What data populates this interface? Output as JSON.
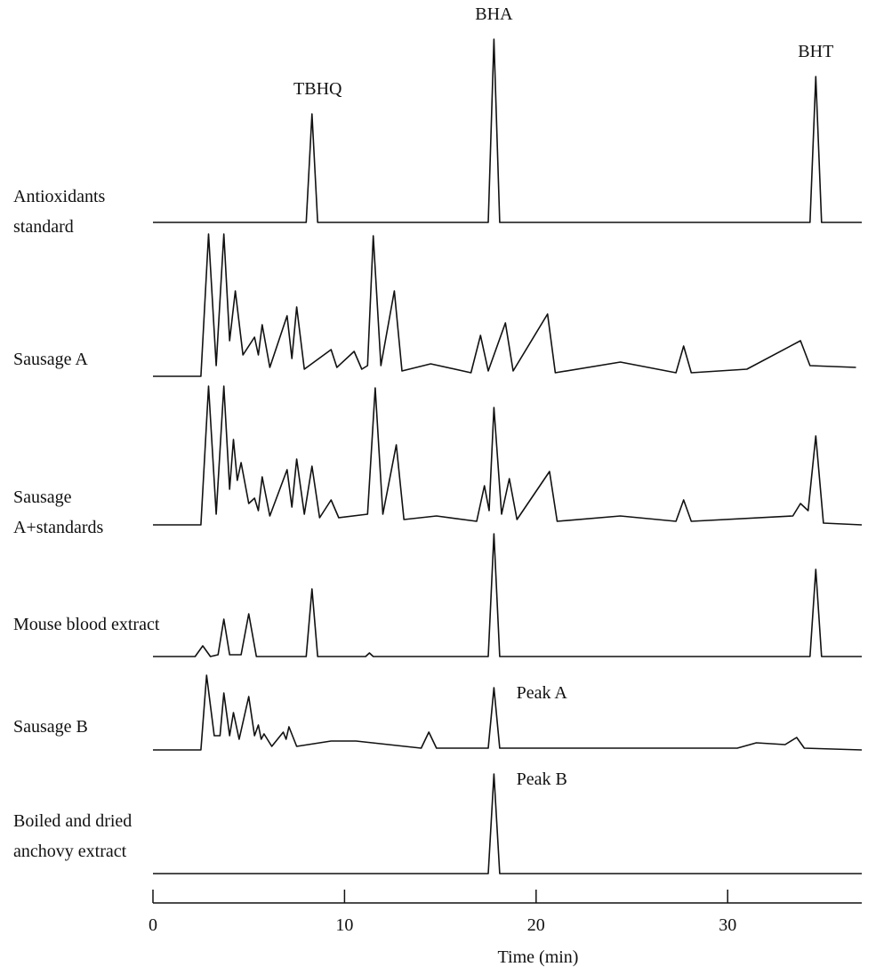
{
  "chart_data": {
    "type": "line",
    "xlabel": "Time (min)",
    "xlim": [
      0,
      37
    ],
    "xticks": [
      0,
      10,
      20,
      30
    ],
    "color": "#111111",
    "series": [
      {
        "name": "Antioxidants standard",
        "x": [
          0,
          8.0,
          8.3,
          8.6,
          17.5,
          17.8,
          18.1,
          34.3,
          34.6,
          34.9,
          37
        ],
        "values": [
          0,
          0,
          61,
          0,
          0,
          103,
          0,
          0,
          82,
          0,
          0
        ],
        "annotations": [
          {
            "text": "TBHQ",
            "x": 8.6
          },
          {
            "text": "BHA",
            "x": 17.8
          },
          {
            "text": "BHT",
            "x": 34.6
          }
        ]
      },
      {
        "name": "Sausage A",
        "x": [
          0,
          2.5,
          2.9,
          3.3,
          3.7,
          4.0,
          4.3,
          4.7,
          5.3,
          5.5,
          5.7,
          6.1,
          7.0,
          7.25,
          7.5,
          7.9,
          9.3,
          9.6,
          10.5,
          10.9,
          11.2,
          11.5,
          11.9,
          12.6,
          13.0,
          14.5,
          16.6,
          17.1,
          17.5,
          18.4,
          18.8,
          20.6,
          21.0,
          24.4,
          27.3,
          27.7,
          28.1,
          31,
          33.8,
          34.3,
          36.7
        ],
        "values": [
          0,
          0,
          80,
          6,
          80,
          20,
          48,
          12,
          22,
          12,
          29,
          5,
          34,
          10,
          39,
          4,
          15,
          5,
          14,
          4,
          6,
          79,
          6,
          48,
          3,
          7,
          2,
          23,
          3,
          30,
          3,
          35,
          2,
          8,
          2,
          17,
          2,
          4,
          20,
          6,
          5
        ]
      },
      {
        "name": "Sausage A+standards",
        "x": [
          0,
          2.5,
          2.9,
          3.3,
          3.7,
          4.0,
          4.2,
          4.4,
          4.6,
          5.0,
          5.3,
          5.5,
          5.7,
          6.1,
          7.0,
          7.25,
          7.5,
          7.9,
          8.3,
          8.7,
          9.3,
          9.7,
          11.2,
          11.6,
          12.0,
          12.7,
          13.1,
          14.8,
          16.9,
          17.3,
          17.55,
          17.8,
          18.2,
          18.6,
          19.0,
          20.7,
          21.1,
          24.4,
          27.3,
          27.7,
          28.1,
          33.4,
          33.8,
          34.2,
          34.6,
          35.0,
          37
        ],
        "values": [
          0,
          0,
          78,
          6,
          78,
          20,
          48,
          25,
          35,
          12,
          15,
          8,
          27,
          5,
          31,
          10,
          37,
          6,
          33,
          4,
          14,
          4,
          6,
          77,
          6,
          45,
          3,
          5,
          2,
          22,
          8,
          66,
          6,
          26,
          3,
          30,
          2,
          5,
          2,
          14,
          2,
          5,
          12,
          8,
          50,
          1,
          0
        ]
      },
      {
        "name": "Mouse blood extract",
        "x": [
          0,
          2.2,
          2.6,
          3.0,
          3.4,
          3.7,
          4.0,
          4.6,
          5.0,
          5.4,
          8.0,
          8.3,
          8.6,
          11.1,
          11.3,
          11.5,
          17.5,
          17.8,
          18.1,
          34.3,
          34.6,
          34.9,
          37
        ],
        "values": [
          0,
          0,
          6,
          0,
          1,
          21,
          1,
          1,
          24,
          0,
          0,
          38,
          0,
          0,
          2,
          0,
          0,
          69,
          0,
          0,
          49,
          0,
          0
        ]
      },
      {
        "name": "Sausage B",
        "x": [
          0,
          2.5,
          2.8,
          3.2,
          3.5,
          3.7,
          4.0,
          4.2,
          4.5,
          5.0,
          5.3,
          5.5,
          5.65,
          5.8,
          6.2,
          6.8,
          6.95,
          7.1,
          7.5,
          9.3,
          10.6,
          14.0,
          14.4,
          14.8,
          17.5,
          17.8,
          18.1,
          30.5,
          31.5,
          33.0,
          33.6,
          34.0,
          37
        ],
        "values": [
          0,
          0,
          42,
          8,
          8,
          32,
          8,
          21,
          6,
          30,
          8,
          14,
          6,
          9,
          2,
          10,
          6,
          13,
          2,
          5,
          5,
          1,
          10,
          1,
          1,
          35,
          1,
          1,
          4,
          3,
          7,
          1,
          0
        ],
        "annotations": [
          {
            "text": "Peak A",
            "x": 20.3
          }
        ]
      },
      {
        "name": "Boiled and dried anchovy extract",
        "x": [
          0,
          17.5,
          17.8,
          18.1,
          37
        ],
        "values": [
          0,
          0,
          56,
          0,
          0
        ],
        "annotations": [
          {
            "text": "Peak B",
            "x": 20.3
          }
        ]
      }
    ]
  }
}
